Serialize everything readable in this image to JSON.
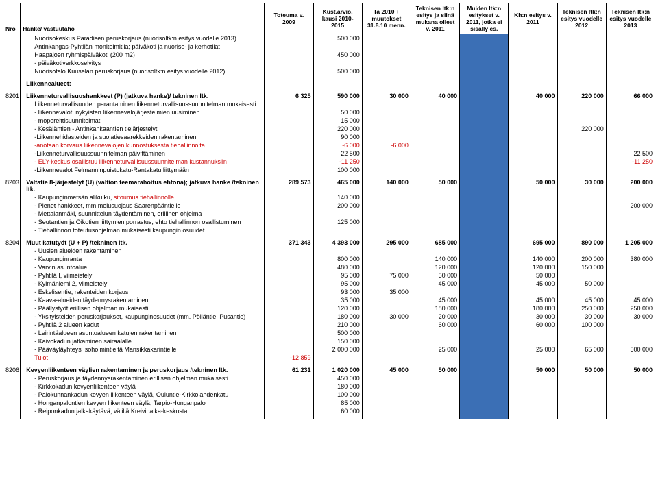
{
  "headers": {
    "nro": "Nro",
    "hanke": "Hanke/ vastuutaho",
    "toteuma": "Toteuma v. 2009",
    "kust": "Kust.arvio, kausi 2010-2015",
    "ta2010": "Ta 2010 + muutokset 31.8.10 menn.",
    "tek_esitys": "Teknisen ltk:n esitys ja siinä mukana olleet v. 2011",
    "muiden": "Muiden ltk:n esitykset v. 2011, jotka ei sisälly es.",
    "kh": "Kh:n esitys v. 2011",
    "tek2012": "Teknisen ltk:n esitys vuodelle 2012",
    "tek2013": "Teknisen ltk:n esitys vuodelle 2013"
  },
  "top_section": [
    {
      "desc": "Nuorisokeskus Paradisen peruskorjaus (nuorisoltk:n esitys vuodelle 2013)",
      "kust": "500 000"
    },
    {
      "desc": "Antinkangas-Pyhtilän monitoimitila; päiväkoti ja nuoriso- ja kerhotilat"
    },
    {
      "desc": "Haapajoen ryhmispäiväkoti (200 m2)",
      "kust": "450 000"
    },
    {
      "desc": "- päiväkotiverkkoselvitys"
    },
    {
      "desc": "Nuorisotalo Kuuselan peruskorjaus (nuorisoltk:n esitys vuodelle 2012)",
      "kust": "500 000"
    }
  ],
  "liikenne_header": "Liikennealueet:",
  "sections": [
    {
      "nro": "8201",
      "title": "Liikenneturvallisuushankkeet (P) (jatkuva hanke)/ tekninen ltk.",
      "toteuma": "6 325",
      "kust": "590 000",
      "ta2010": "30 000",
      "tek_esitys": "40 000",
      "kh": "40 000",
      "tek2012": "220 000",
      "tek2013": "66 000",
      "rows": [
        {
          "desc": "Liikenneturvallisuuden parantaminen liikenneturvallisuussuunnitelman mukaisesti"
        },
        {
          "desc": "- liikennevalot, nykyisten liikennevalojärjestelmien uusiminen",
          "kust": "50 000"
        },
        {
          "desc": "- moporeittisuunnitelmat",
          "kust": "15 000"
        },
        {
          "desc": "- Kesäläntien - Antinkankaantien tiejärjestelyt",
          "kust": "220 000",
          "tek2012": "220 000"
        },
        {
          "desc": "-Liikennehidasteiden ja suojatiesaarekkeiden rakentaminen",
          "kust": "90 000"
        },
        {
          "desc": "-anotaan korvaus liikennevalojen kunnostuksesta tiehallinnolta",
          "red": true,
          "kust": "-6 000",
          "ta2010": "-6 000"
        },
        {
          "desc": "-Liikenneturvallisuussuunnitelman päivittäminen",
          "kust": "22 500",
          "tek2013": "22 500"
        },
        {
          "desc": "- ELY-keskus osallistuu liikenneturvallisuussuunnitelman kustannuksiin",
          "red": true,
          "kust": "-11 250",
          "tek2013": "-11 250"
        },
        {
          "desc": "-Liikennevalot Felmanninpuistokatu-Rantakatu liittymään",
          "kust": "100 000"
        }
      ]
    },
    {
      "nro": "8203",
      "title": "Valtatie 8-järjestelyt (U) (valtion teemarahoitus ehtona); jatkuva hanke /tekninen ltk.",
      "toteuma": "289 573",
      "kust": "465 000",
      "ta2010": "140 000",
      "tek_esitys": "50 000",
      "kh": "50 000",
      "tek2012": "30 000",
      "tek2013": "200 000",
      "rows": [
        {
          "desc": "- Kaupunginmetsän alikulku, sitoumus tiehallinnolle",
          "red_partial": true,
          "kust": "140 000"
        },
        {
          "desc": "- Pienet hankkeet, mm melusuojaus Saarenpääntielle",
          "kust": "200 000",
          "tek2013": "200 000"
        },
        {
          "desc": "- Mettalanmäki, suunnittelun täydentäminen, erillinen ohjelma"
        },
        {
          "desc": "- Seutantien ja Oikotien liittymien porrastus, ehto tiehallinnon osallistuminen",
          "kust": "125 000"
        },
        {
          "desc": "- Tiehallinnon toteutusohjelman mukaisesti kaupungin osuudet"
        }
      ]
    },
    {
      "nro": "8204",
      "title": "Muut katutyöt   (U + P) /tekninen ltk.",
      "toteuma": "371 343",
      "kust": "4 393 000",
      "ta2010": "295 000",
      "tek_esitys": "685 000",
      "kh": "695 000",
      "tek2012": "890 000",
      "tek2013": "1 205 000",
      "rows": [
        {
          "desc": "- Uusien alueiden rakentaminen"
        },
        {
          "desc": "- Kaupunginranta",
          "kust": "800 000",
          "tek_esitys": "140 000",
          "kh": "140 000",
          "tek2012": "200 000",
          "tek2013": "380 000"
        },
        {
          "desc": "- Varvin asuntoalue",
          "kust": "480 000",
          "tek_esitys": "120 000",
          "kh": "120 000",
          "tek2012": "150 000"
        },
        {
          "desc": "- Pyhtilä I, viimeistely",
          "kust": "95 000",
          "ta2010": "75 000",
          "tek_esitys": "50 000",
          "kh": "50 000"
        },
        {
          "desc": "- Kylmäniemi 2, viimeistely",
          "kust": "95 000",
          "tek_esitys": "45 000",
          "kh": "45 000",
          "tek2012": "50 000"
        },
        {
          "desc": "- Eskelisentie, rakenteiden korjaus",
          "kust": "93 000",
          "ta2010": "35 000"
        },
        {
          "desc": "- Kaava-alueiden täydennysrakentaminen",
          "kust": "35 000",
          "tek_esitys": "45 000",
          "kh": "45 000",
          "tek2012": "45 000",
          "tek2013": "45 000"
        },
        {
          "desc": "- Päällystyöt erillisen ohjelman mukaisesti",
          "kust": "120 000",
          "tek_esitys": "180 000",
          "kh": "180 000",
          "tek2012": "250 000",
          "tek2013": "250 000"
        },
        {
          "desc": "- Yksityisteiden peruskorjaukset, kaupunginosuudet (mm. Pölläntie, Pusantie)",
          "kust": "180 000",
          "ta2010": "30 000",
          "tek_esitys": "20 000",
          "kh": "30 000",
          "tek2012": "30 000",
          "tek2013": "30 000"
        },
        {
          "desc": "- Pyhtilä 2 alueen kadut",
          "kust": "210 000",
          "tek_esitys": "60 000",
          "kh": "60 000",
          "tek2012": "100 000"
        },
        {
          "desc": "- Leirintäalueen asuntoalueen katujen rakentaminen",
          "kust": "500 000"
        },
        {
          "desc": "- Kaivokadun jatkaminen sairaalalle",
          "kust": "150 000"
        },
        {
          "desc": "- Pääväyläyhteys Isoholmintieltä Mansikkakarintielle",
          "kust": "2 000 000",
          "tek_esitys": "25 000",
          "kh": "25 000",
          "tek2012": "65 000",
          "tek2013": "500 000"
        },
        {
          "desc": "Tulot",
          "red": true,
          "toteuma": "-12 859"
        }
      ]
    },
    {
      "nro": "8206",
      "title": "Kevyenliikenteen väylien rakentaminen ja peruskorjaus /tekninen ltk.",
      "toteuma": "61 231",
      "kust": "1 020 000",
      "ta2010": "45 000",
      "tek_esitys": "50 000",
      "kh": "50 000",
      "tek2012": "50 000",
      "tek2013": "50 000",
      "rows": [
        {
          "desc": "- Peruskorjaus ja täydennysrakentaminen erillisen ohjelman mukaisesti",
          "kust": "450 000"
        },
        {
          "desc": "- Kirkkokadun kevyenliikenteen väylä",
          "kust": "180 000"
        },
        {
          "desc": "- Palokunnankadun kevyen liikenteen väylä, Ouluntie-Kirkkolahdenkatu",
          "kust": "100 000"
        },
        {
          "desc": "- Honganpalontien kevyen liikenteen väylä, Tarpio-Honganpalo",
          "kust": "85 000"
        },
        {
          "desc": "- Reiponkadun jalkakäytävä, välillä Kreivinaika-keskusta",
          "kust": "60 000"
        }
      ]
    }
  ]
}
